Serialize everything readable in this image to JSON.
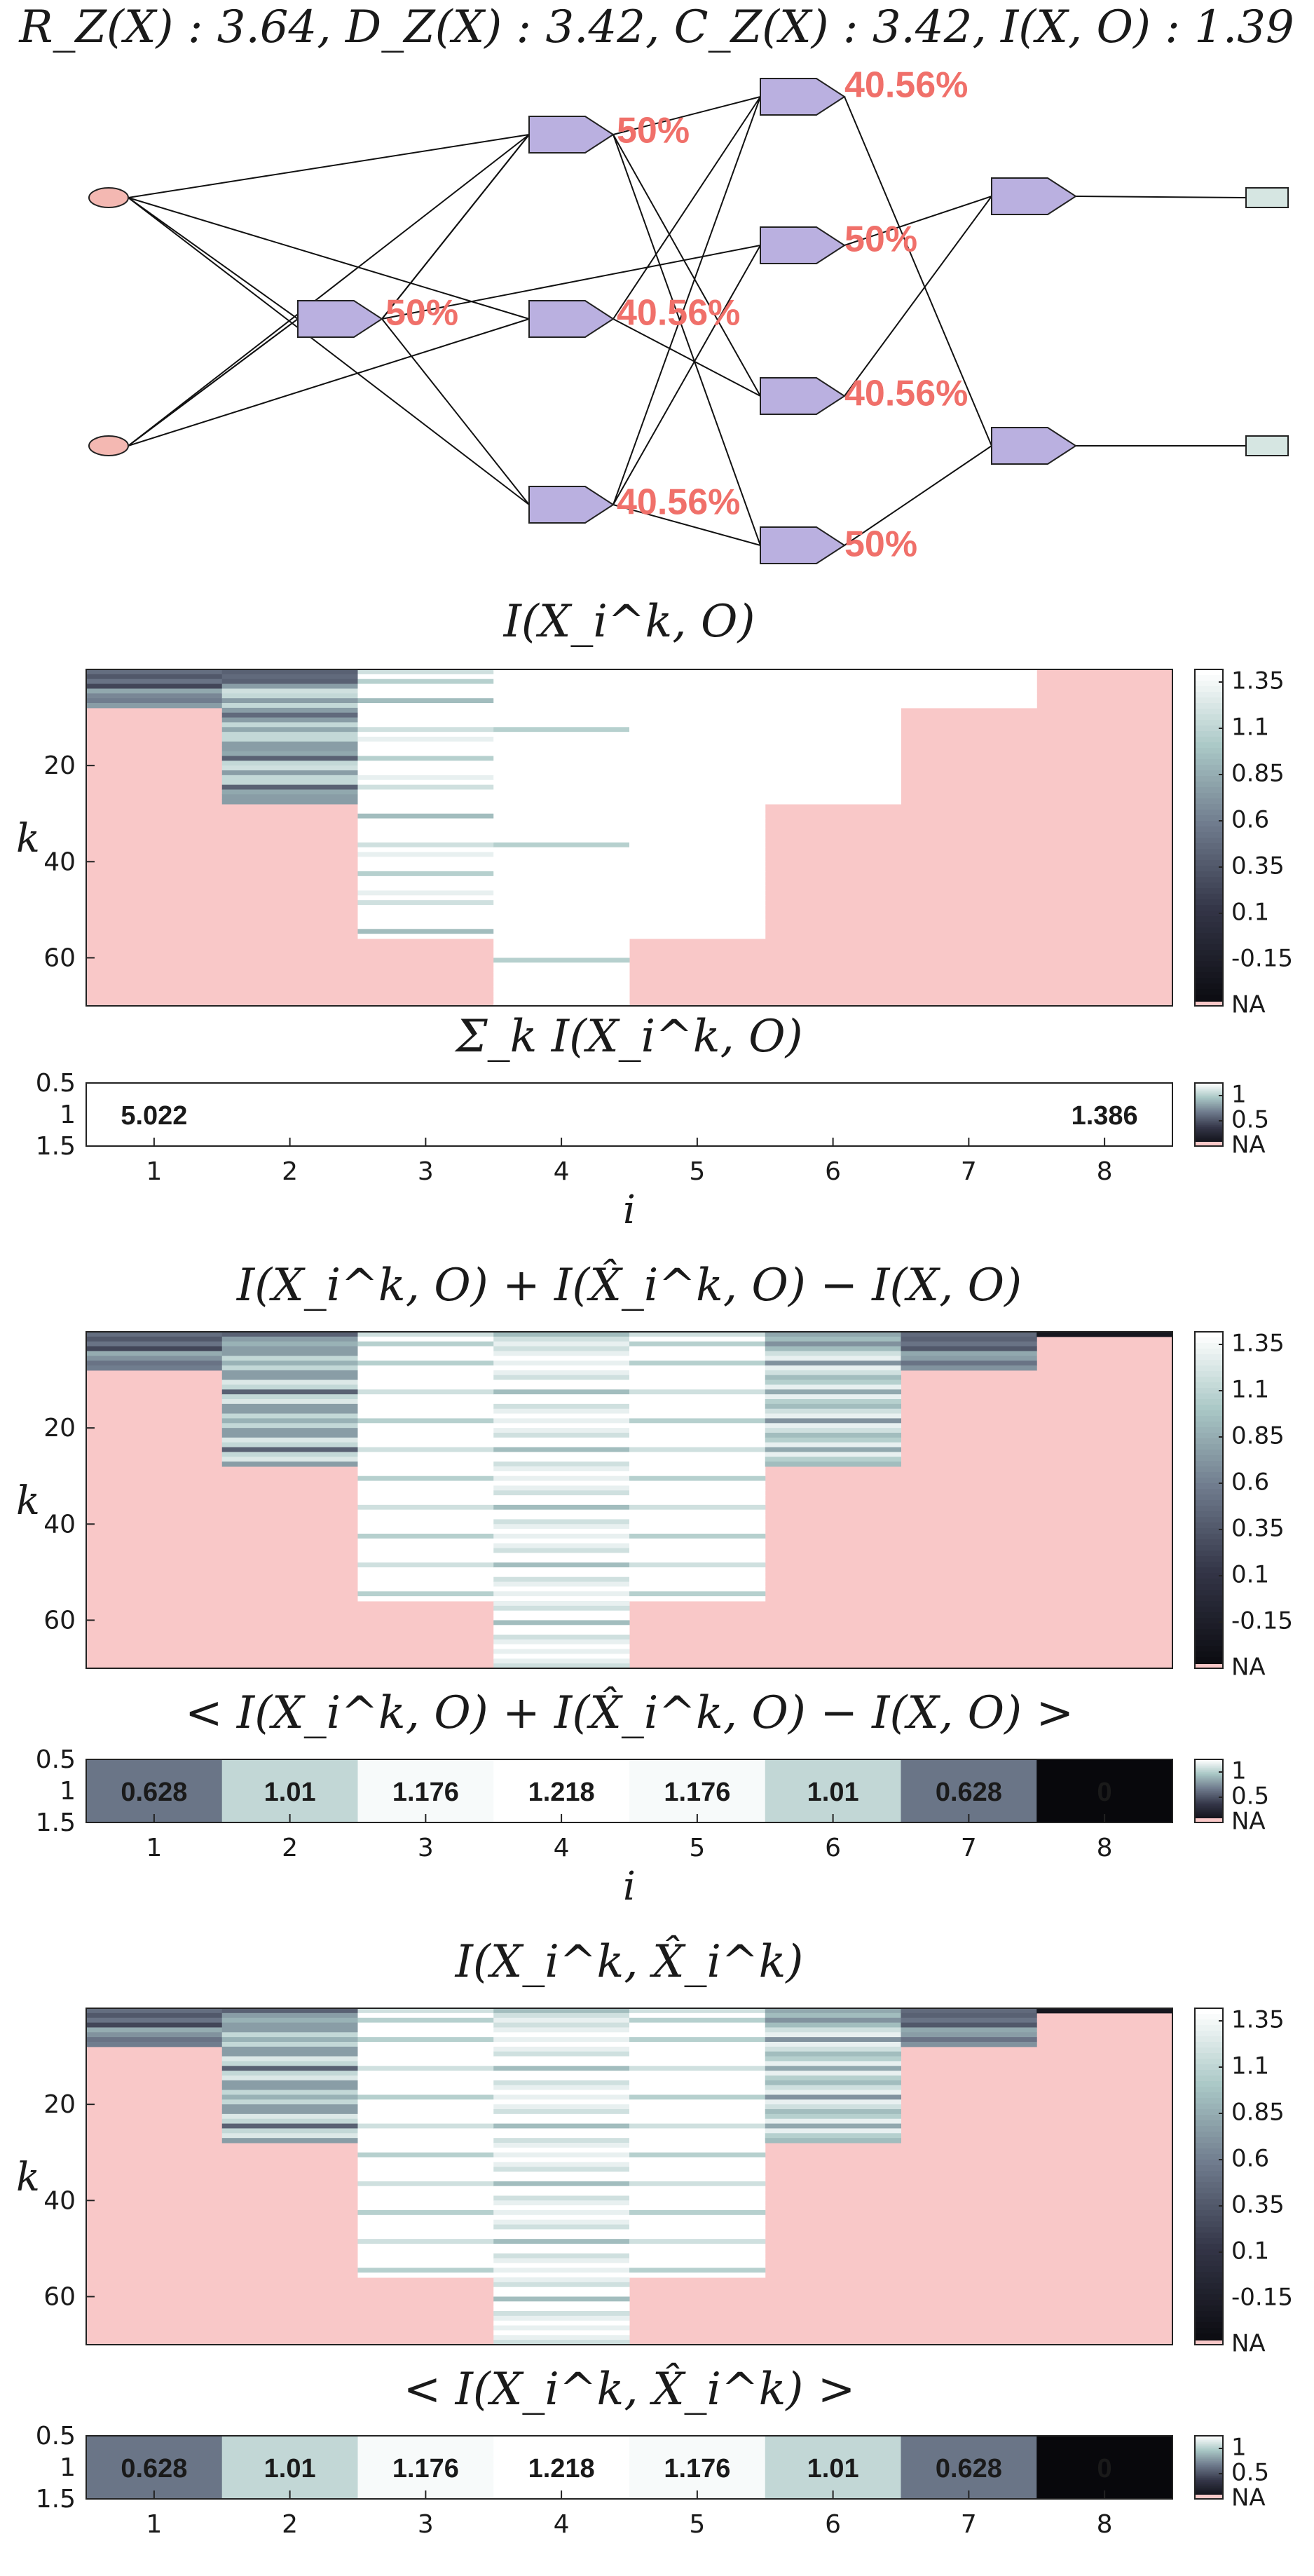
{
  "figure_title": "R_Z(X) : 3.64, D_Z(X) : 3.42, C_Z(X) : 3.42, I(X, O) : 1.39",
  "network": {
    "percent_labels": [
      "50%",
      "50%",
      "40.56%",
      "40.56%",
      "40.56%",
      "50%",
      "40.56%",
      "50%"
    ],
    "colors": {
      "input": "#f4b8b2",
      "hidden": "#bab0e0",
      "output": "#d6e6e2",
      "pct": "#f0706a"
    }
  },
  "colorbar": {
    "tick_labels": [
      "1.35",
      "1.1",
      "0.85",
      "0.6",
      "0.35",
      "0.1",
      "-0.15",
      "NA"
    ],
    "mean_tick_labels": [
      "1",
      "0.5",
      "NA"
    ],
    "na_color": "#f9c8c8"
  },
  "chart_data": [
    {
      "type": "heatmap",
      "title": "I(X_i^k, O)",
      "xlabel": "",
      "ylabel": "k",
      "x": [
        1,
        2,
        3,
        4,
        5,
        6,
        7,
        8
      ],
      "y_ticks": [
        "20",
        "40",
        "60"
      ],
      "ylim": [
        70,
        1
      ],
      "column_heights": [
        8,
        28,
        56,
        70,
        56,
        28,
        8,
        1
      ],
      "value_range": [
        -0.15,
        1.39
      ],
      "rows": [
        [
          0.62,
          0.55,
          1.2,
          1.39,
          1.39,
          1.39,
          1.39,
          null
        ],
        [
          0.5,
          0.6,
          1.39,
          1.39,
          1.39,
          1.39,
          1.39,
          null
        ],
        [
          0.65,
          0.55,
          1.1,
          1.39,
          1.39,
          1.39,
          1.39,
          null
        ],
        [
          0.4,
          0.85,
          1.39,
          1.39,
          1.39,
          1.39,
          1.39,
          null
        ],
        [
          0.6,
          0.9,
          1.2,
          1.1,
          1.39,
          1.39,
          1.39,
          null
        ],
        [
          0.45,
          0.85,
          1.39,
          1.39,
          1.39,
          1.39,
          1.39,
          null
        ],
        [
          0.7,
          0.85,
          1.0,
          1.39,
          1.39,
          1.39,
          1.39,
          null
        ],
        [
          0.55,
          0.85,
          1.39,
          1.39,
          1.39,
          1.39,
          1.39,
          null
        ]
      ],
      "cell_labels": []
    },
    {
      "type": "heatmap",
      "title": "Σ_k I(X_i^k, O)",
      "xlabel": "i",
      "ylabel": "",
      "x": [
        1,
        2,
        3,
        4,
        5,
        6,
        7,
        8
      ],
      "y_ticks": [
        "0.5",
        "1",
        "1.5"
      ],
      "values": [
        5.022,
        null,
        null,
        null,
        null,
        null,
        null,
        1.386
      ],
      "cell_labels": [
        "5.022",
        "",
        "",
        "",
        "",
        "",
        "",
        "1.386"
      ],
      "value_range": [
        0,
        1.2
      ]
    },
    {
      "type": "heatmap",
      "title": "I(X_i^k, O) + I(X̂_i^k, O) − I(X, O)",
      "xlabel": "",
      "ylabel": "k",
      "x": [
        1,
        2,
        3,
        4,
        5,
        6,
        7,
        8
      ],
      "y_ticks": [
        "20",
        "40",
        "60"
      ],
      "ylim": [
        70,
        1
      ],
      "column_heights": [
        8,
        28,
        56,
        70,
        56,
        28,
        8,
        1
      ],
      "value_range": [
        -0.15,
        1.39
      ],
      "rows": [
        [
          0.62,
          0.55,
          1.2,
          1.0,
          1.2,
          0.9,
          0.6,
          0.0
        ],
        [
          0.5,
          0.85,
          1.39,
          1.2,
          1.39,
          1.0,
          0.55,
          null
        ],
        [
          0.65,
          0.95,
          1.1,
          1.3,
          1.1,
          0.8,
          0.65,
          null
        ],
        [
          0.4,
          0.85,
          1.39,
          1.2,
          1.39,
          1.0,
          0.5,
          null
        ]
      ],
      "cell_labels": []
    },
    {
      "type": "heatmap",
      "title": "< I(X_i^k, O) + I(X̂_i^k, O) − I(X, O) >",
      "xlabel": "i",
      "ylabel": "",
      "x": [
        1,
        2,
        3,
        4,
        5,
        6,
        7,
        8
      ],
      "y_ticks": [
        "0.5",
        "1",
        "1.5"
      ],
      "values": [
        0.628,
        1.01,
        1.176,
        1.218,
        1.176,
        1.01,
        0.628,
        0
      ],
      "cell_labels": [
        "0.628",
        "1.01",
        "1.176",
        "1.218",
        "1.176",
        "1.01",
        "0.628",
        "0"
      ],
      "value_range": [
        0,
        1.2
      ]
    },
    {
      "type": "heatmap",
      "title": "I(X_i^k, X̂_i^k)",
      "xlabel": "",
      "ylabel": "k",
      "x": [
        1,
        2,
        3,
        4,
        5,
        6,
        7,
        8
      ],
      "y_ticks": [
        "20",
        "40",
        "60"
      ],
      "ylim": [
        70,
        1
      ],
      "column_heights": [
        8,
        28,
        56,
        70,
        56,
        28,
        8,
        1
      ],
      "value_range": [
        -0.15,
        1.39
      ],
      "rows": [
        [
          0.62,
          0.55,
          1.2,
          1.0,
          1.2,
          0.9,
          0.6,
          0.0
        ],
        [
          0.5,
          0.85,
          1.39,
          1.2,
          1.39,
          1.0,
          0.55,
          null
        ],
        [
          0.65,
          0.95,
          1.1,
          1.3,
          1.1,
          0.8,
          0.65,
          null
        ],
        [
          0.4,
          0.85,
          1.39,
          1.2,
          1.39,
          1.0,
          0.5,
          null
        ]
      ],
      "cell_labels": []
    },
    {
      "type": "heatmap",
      "title": "< I(X_i^k, X̂_i^k) >",
      "xlabel": "",
      "ylabel": "",
      "x": [
        1,
        2,
        3,
        4,
        5,
        6,
        7,
        8
      ],
      "y_ticks": [
        "0.5",
        "1",
        "1.5"
      ],
      "values": [
        0.628,
        1.01,
        1.176,
        1.218,
        1.176,
        1.01,
        0.628,
        0
      ],
      "cell_labels": [
        "0.628",
        "1.01",
        "1.176",
        "1.218",
        "1.176",
        "1.01",
        "0.628",
        "0"
      ],
      "value_range": [
        0,
        1.2
      ]
    }
  ]
}
